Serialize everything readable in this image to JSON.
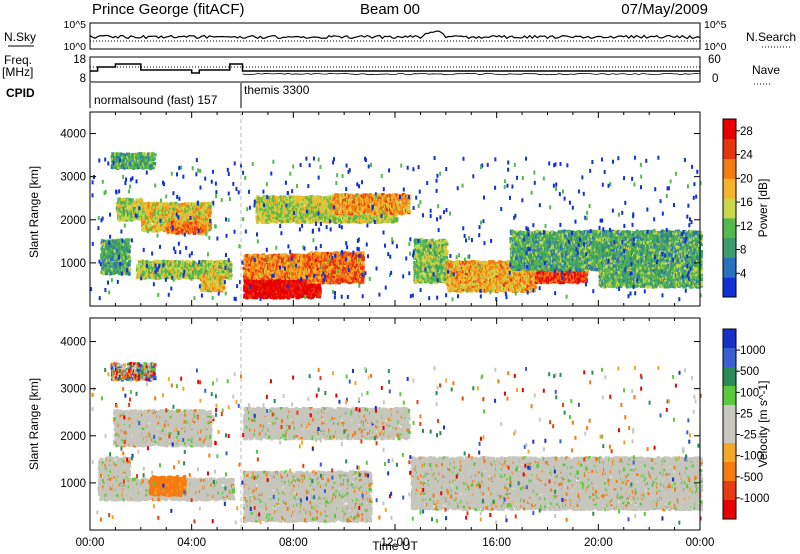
{
  "header": {
    "station": "Prince George (fitACF)",
    "beam": "Beam 00",
    "date": "07/May/2009"
  },
  "panels": {
    "nsky_label": "N.Sky",
    "nsky_left_ticks": [
      "10^5",
      "10^0"
    ],
    "nsearch_label": "N.Search",
    "nsearch_ticks": [
      "10^5",
      "10^0"
    ],
    "freq_label_1": "Freq.",
    "freq_label_2": "[MHz]",
    "freq_ticks": [
      "18",
      "8"
    ],
    "nave_label": "Nave",
    "nave_ticks": [
      "60",
      "0"
    ],
    "cpid_label": "CPID",
    "cpid_segments": [
      {
        "label": "normalsound (fast) 157"
      },
      {
        "label": "themis 3300"
      }
    ]
  },
  "colors": {
    "power_scale": [
      "#1030d8",
      "#2a6fc0",
      "#3d9a6a",
      "#55b84c",
      "#c8d84a",
      "#f4b42c",
      "#f57c10",
      "#e63410",
      "#e80000"
    ],
    "velocity_scale": [
      "#1830c8",
      "#3a5fd0",
      "#2b8a55",
      "#5cc83c",
      "#c8c8c0",
      "#c8c8c0",
      "#f4a82a",
      "#f57a10",
      "#e83a10",
      "#e80000"
    ],
    "ground_scatter": "#c6c6bd"
  },
  "chart_data": [
    {
      "type": "heatmap",
      "name": "power",
      "ylabel": "Slant Range [km]",
      "y_ticks": [
        "1000",
        "2000",
        "3000",
        "4000"
      ],
      "ylim": [
        0,
        4500
      ],
      "x_ticks": [
        "00:00",
        "04:00",
        "08:00",
        "12:00",
        "16:00",
        "20:00",
        "00:00"
      ],
      "xlim_hours": [
        0,
        24
      ],
      "colorbar": {
        "label": "Power [dB]",
        "ticks": [
          "4",
          "8",
          "12",
          "16",
          "20",
          "24",
          "28"
        ],
        "range": [
          0,
          30
        ]
      },
      "regions": [
        {
          "t0": 0.8,
          "t1": 2.5,
          "r0": 3150,
          "r1": 3500,
          "level": 10
        },
        {
          "t0": 1.0,
          "t1": 2.0,
          "r0": 1950,
          "r1": 2450,
          "level": 14
        },
        {
          "t0": 2.0,
          "t1": 4.7,
          "r0": 1700,
          "r1": 2350,
          "level": 17
        },
        {
          "t0": 3.0,
          "t1": 4.5,
          "r0": 1650,
          "r1": 1900,
          "level": 22
        },
        {
          "t0": 0.4,
          "t1": 1.5,
          "r0": 700,
          "r1": 1500,
          "level": 10
        },
        {
          "t0": 1.8,
          "t1": 5.5,
          "r0": 600,
          "r1": 1000,
          "level": 14
        },
        {
          "t0": 4.3,
          "t1": 5.2,
          "r0": 300,
          "r1": 700,
          "level": 18
        },
        {
          "t0": 6.0,
          "t1": 9.0,
          "r0": 150,
          "r1": 700,
          "level": 29
        },
        {
          "t0": 6.0,
          "t1": 8.5,
          "r0": 600,
          "r1": 1150,
          "level": 21
        },
        {
          "t0": 8.5,
          "t1": 10.7,
          "r0": 500,
          "r1": 1200,
          "level": 22
        },
        {
          "t0": 6.5,
          "t1": 12.0,
          "r0": 1900,
          "r1": 2500,
          "level": 15
        },
        {
          "t0": 9.5,
          "t1": 12.5,
          "r0": 2100,
          "r1": 2550,
          "level": 20
        },
        {
          "t0": 12.7,
          "t1": 14.0,
          "r0": 500,
          "r1": 1500,
          "level": 13
        },
        {
          "t0": 14.0,
          "t1": 17.5,
          "r0": 300,
          "r1": 1000,
          "level": 19
        },
        {
          "t0": 17.5,
          "t1": 19.5,
          "r0": 500,
          "r1": 900,
          "level": 25
        },
        {
          "t0": 16.5,
          "t1": 24.0,
          "r0": 800,
          "r1": 1700,
          "level": 10
        },
        {
          "t0": 20.0,
          "t1": 24.0,
          "r0": 400,
          "r1": 900,
          "level": 11
        }
      ]
    },
    {
      "type": "heatmap",
      "name": "velocity",
      "ylabel": "Slant Range [km]",
      "y_ticks": [
        "1000",
        "2000",
        "3000",
        "4000"
      ],
      "ylim": [
        0,
        4500
      ],
      "x_ticks": [
        "00:00",
        "04:00",
        "08:00",
        "12:00",
        "16:00",
        "20:00",
        "00:00"
      ],
      "xlabel": "Time UT",
      "xlim_hours": [
        0,
        24
      ],
      "colorbar": {
        "label": "Velocity [m s^-1]",
        "ticks": [
          "1000",
          "500",
          "100",
          "25",
          "-25",
          "-100",
          "-500",
          "-1000"
        ]
      },
      "regions": [
        {
          "t0": 0.8,
          "t1": 2.5,
          "r0": 3150,
          "r1": 3500,
          "kind": "mixed"
        },
        {
          "t0": 0.9,
          "t1": 4.7,
          "r0": 1750,
          "r1": 2500,
          "kind": "ground"
        },
        {
          "t0": 0.3,
          "t1": 1.5,
          "r0": 700,
          "r1": 1500,
          "kind": "ground"
        },
        {
          "t0": 0.3,
          "t1": 5.6,
          "r0": 600,
          "r1": 1050,
          "kind": "ground"
        },
        {
          "t0": 2.3,
          "t1": 3.7,
          "r0": 700,
          "r1": 1100,
          "kind": "orange",
          "velocity": -200
        },
        {
          "t0": 6.0,
          "t1": 12.5,
          "r0": 1900,
          "r1": 2550,
          "kind": "ground"
        },
        {
          "t0": 6.0,
          "t1": 11.0,
          "r0": 150,
          "r1": 1200,
          "kind": "ground"
        },
        {
          "t0": 12.6,
          "t1": 24.0,
          "r0": 400,
          "r1": 1500,
          "kind": "ground"
        }
      ]
    }
  ]
}
